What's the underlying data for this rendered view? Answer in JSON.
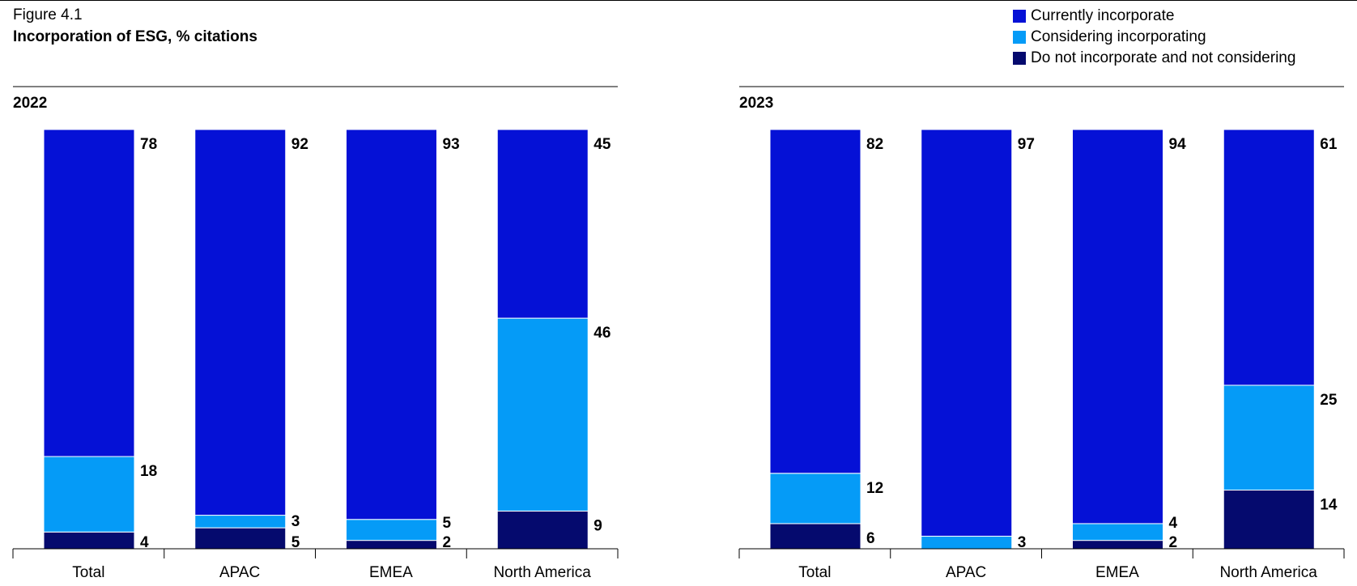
{
  "figure": {
    "label": "Figure 4.1",
    "title": "Incorporation of ESG, % citations"
  },
  "colors": {
    "currently": "#0511d6",
    "considering": "#059bf7",
    "not": "#050a6e"
  },
  "legend": [
    {
      "key": "currently",
      "label": "Currently incorporate"
    },
    {
      "key": "considering",
      "label": "Considering incorporating"
    },
    {
      "key": "not",
      "label": "Do not incorporate and not considering"
    }
  ],
  "chart_data": [
    {
      "type": "bar",
      "stacked": true,
      "title": "2022",
      "categories": [
        "Total",
        "APAC",
        "EMEA",
        "North America"
      ],
      "series": [
        {
          "name": "Do not incorporate and not considering",
          "key": "not",
          "values": [
            4,
            5,
            2,
            9
          ]
        },
        {
          "name": "Considering incorporating",
          "key": "considering",
          "values": [
            18,
            3,
            5,
            46
          ]
        },
        {
          "name": "Currently incorporate",
          "key": "currently",
          "values": [
            78,
            92,
            93,
            45
          ]
        }
      ],
      "ylim": [
        0,
        100
      ],
      "grid": false,
      "legend_position": "top-right"
    },
    {
      "type": "bar",
      "stacked": true,
      "title": "2023",
      "categories": [
        "Total",
        "APAC",
        "EMEA",
        "North America"
      ],
      "series": [
        {
          "name": "Do not incorporate and not considering",
          "key": "not",
          "values": [
            6,
            0,
            2,
            14
          ]
        },
        {
          "name": "Considering incorporating",
          "key": "considering",
          "values": [
            12,
            3,
            4,
            25
          ]
        },
        {
          "name": "Currently incorporate",
          "key": "currently",
          "values": [
            82,
            97,
            94,
            61
          ]
        }
      ],
      "ylim": [
        0,
        100
      ],
      "grid": false,
      "legend_position": "top-right"
    }
  ]
}
